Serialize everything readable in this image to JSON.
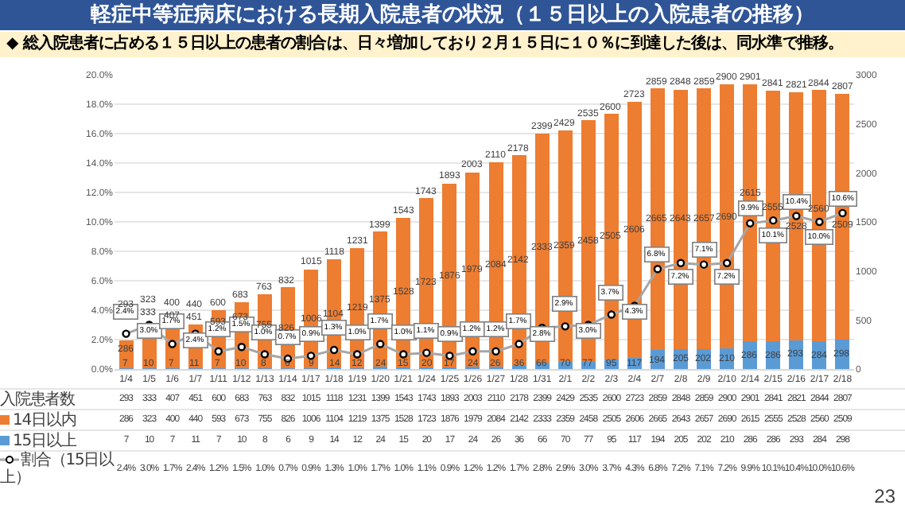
{
  "chart_data": {
    "type": "bar",
    "title": "軽症中等症病床における長期入院患者の状況（１５日以上の入院患者の推移）",
    "subtitle": "◆ 総入院患者に占める１５日以上の患者の割合は、日々増加しており２月１５日に１０％に到達した後は、同水準で推移。",
    "categories": [
      "1/4",
      "1/5",
      "1/6",
      "1/7",
      "1/11",
      "1/12",
      "1/13",
      "1/14",
      "1/17",
      "1/18",
      "1/19",
      "1/20",
      "1/21",
      "1/24",
      "1/25",
      "1/26",
      "1/27",
      "1/28",
      "1/31",
      "2/1",
      "2/2",
      "2/3",
      "2/4",
      "2/7",
      "2/8",
      "2/9",
      "2/10",
      "2/14",
      "2/15",
      "2/16",
      "2/17",
      "2/18"
    ],
    "series": [
      {
        "name": "15日以上",
        "color": "#5b9bd5",
        "axis": "y2",
        "values": [
          7,
          10,
          7,
          11,
          7,
          10,
          8,
          6,
          9,
          14,
          12,
          24,
          15,
          20,
          17,
          24,
          26,
          36,
          66,
          70,
          77,
          95,
          117,
          194,
          205,
          202,
          210,
          286,
          286,
          293,
          284,
          298
        ],
        "value_labels": [
          "7",
          "10",
          "7",
          "11",
          "7",
          "10",
          "8",
          "6",
          "9",
          "14",
          "12",
          "24",
          "15",
          "20",
          "17",
          "24",
          "26",
          "36",
          "66",
          "70",
          "77",
          "95",
          "117",
          "194",
          "205",
          "202",
          "210",
          "286",
          "286",
          "293",
          "284",
          "298"
        ]
      },
      {
        "name": "14日以内",
        "color": "#ed7d31",
        "axis": "y2",
        "values": [
          286,
          323,
          400,
          440,
          593,
          673,
          755,
          826,
          1006,
          1104,
          1219,
          1375,
          1528,
          1723,
          1876,
          1979,
          2084,
          2142,
          2333,
          2359,
          2458,
          2505,
          2606,
          2665,
          2643,
          2657,
          2690,
          2615,
          2555,
          2528,
          2560,
          2509
        ],
        "value_labels": [
          "286",
          "323",
          "400",
          "440",
          "593",
          "673",
          "755",
          "826",
          "1006",
          "1104",
          "1219",
          "1375",
          "1528",
          "1723",
          "1876",
          "1979",
          "2084",
          "2142",
          "2333",
          "2359",
          "2458",
          "2505",
          "2606",
          "2665",
          "2643",
          "2657",
          "2690",
          "2615",
          "2555",
          "2528",
          "2560",
          "2509"
        ]
      },
      {
        "name": "割合（15日以上）",
        "type": "line",
        "color": "#a6a6a6",
        "values": [
          2.4,
          3.0,
          1.7,
          2.4,
          1.2,
          1.5,
          1.0,
          0.7,
          0.9,
          1.3,
          1.0,
          1.7,
          1.0,
          1.1,
          0.9,
          1.2,
          1.2,
          1.7,
          2.8,
          2.9,
          3.0,
          3.7,
          4.3,
          6.8,
          7.2,
          7.1,
          7.2,
          9.9,
          10.1,
          10.4,
          10.0,
          10.6
        ],
        "value_labels": [
          "2.4%",
          "3.0%",
          "1.7%",
          "2.4%",
          "1.2%",
          "1.5%",
          "1.0%",
          "0.7%",
          "0.9%",
          "1.3%",
          "1.0%",
          "1.7%",
          "1.0%",
          "1.1%",
          "0.9%",
          "1.2%",
          "1.2%",
          "1.7%",
          "2.8%",
          "2.9%",
          "3.0%",
          "3.7%",
          "4.3%",
          "6.8%",
          "7.2%",
          "7.1%",
          "7.2%",
          "9.9%",
          "10.1%",
          "10.4%",
          "10.0%",
          "10.6%"
        ]
      }
    ],
    "totals": [
      "293",
      "333",
      "407",
      "451",
      "600",
      "683",
      "763",
      "832",
      "1015",
      "1118",
      "1231",
      "1399",
      "1543",
      "1743",
      "1893",
      "2003",
      "2110",
      "2178",
      "2399",
      "2429",
      "2535",
      "2600",
      "2723",
      "2859",
      "2848",
      "2859",
      "2900",
      "2901",
      "2841",
      "2821",
      "2844",
      "2807"
    ],
    "stacked": true,
    "data_labels": true,
    "ylim": [
      0,
      20
    ],
    "yticks": [
      {
        "value": 0,
        "label": "0.0%"
      },
      {
        "value": 2,
        "label": "2.0%"
      },
      {
        "value": 4,
        "label": "4.0%"
      },
      {
        "value": 6,
        "label": "6.0%"
      },
      {
        "value": 8,
        "label": "8.0%"
      },
      {
        "value": 10,
        "label": "10.0%"
      },
      {
        "value": 12,
        "label": "12.0%"
      },
      {
        "value": 14,
        "label": "14.0%"
      },
      {
        "value": 16,
        "label": "16.0%"
      },
      {
        "value": 18,
        "label": "18.0%"
      },
      {
        "value": 20,
        "label": "20.0%"
      }
    ],
    "y2lim": [
      0,
      3000
    ],
    "y2ticks": [
      0,
      500,
      1000,
      1500,
      2000,
      2500,
      3000
    ],
    "grid": "y",
    "legend": "bottom",
    "marker": "circle",
    "line_style": "solid",
    "annotations": [
      "入院患者数",
      "23"
    ]
  }
}
